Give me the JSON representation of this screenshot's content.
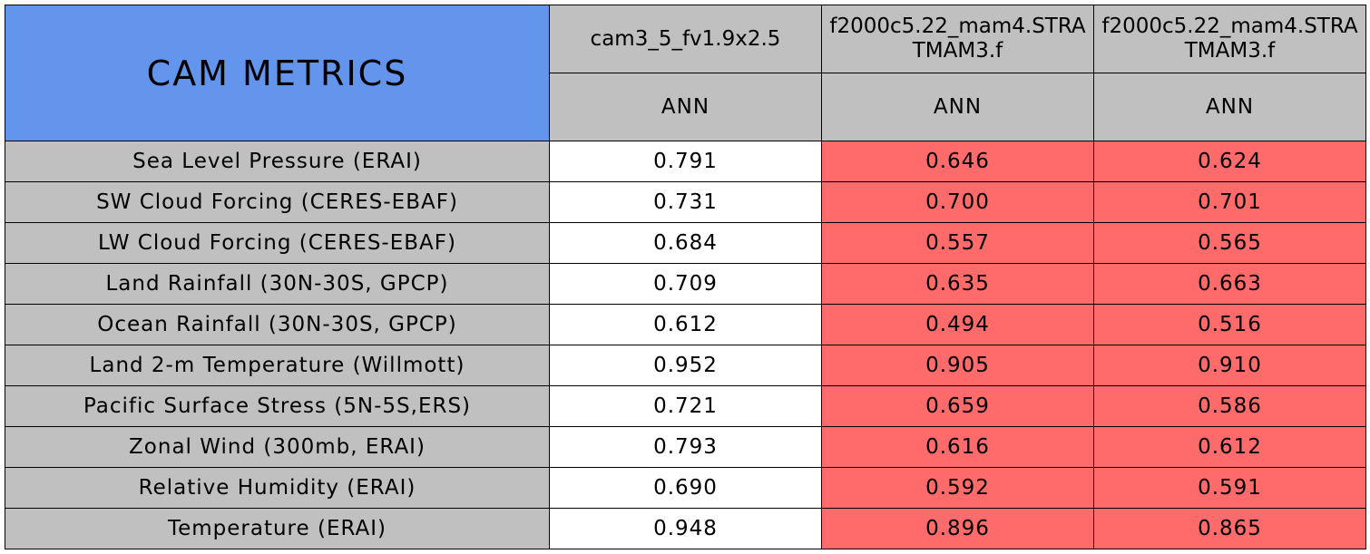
{
  "chart_data": {
    "type": "table",
    "title": "CAM METRICS",
    "columns": [
      "cam3_5_fv1.9x2.5",
      "f2000c5.22_mam4.STRATMAM3.f",
      "f2000c5.22_mam4.STRATMAM3.f"
    ],
    "season": "ANN",
    "rows": [
      {
        "label": "Sea Level Pressure (ERAI)",
        "values": [
          "0.791",
          "0.646",
          "0.624"
        ]
      },
      {
        "label": "SW Cloud Forcing (CERES-EBAF)",
        "values": [
          "0.731",
          "0.700",
          "0.701"
        ]
      },
      {
        "label": "LW Cloud Forcing (CERES-EBAF)",
        "values": [
          "0.684",
          "0.557",
          "0.565"
        ]
      },
      {
        "label": "Land Rainfall (30N-30S, GPCP)",
        "values": [
          "0.709",
          "0.635",
          "0.663"
        ]
      },
      {
        "label": "Ocean Rainfall (30N-30S, GPCP)",
        "values": [
          "0.612",
          "0.494",
          "0.516"
        ]
      },
      {
        "label": "Land 2-m Temperature (Willmott)",
        "values": [
          "0.952",
          "0.905",
          "0.910"
        ]
      },
      {
        "label": "Pacific Surface Stress (5N-5S,ERS)",
        "values": [
          "0.721",
          "0.659",
          "0.586"
        ]
      },
      {
        "label": "Zonal Wind (300mb, ERAI)",
        "values": [
          "0.793",
          "0.616",
          "0.612"
        ]
      },
      {
        "label": "Relative Humidity (ERAI)",
        "values": [
          "0.690",
          "0.592",
          "0.591"
        ]
      },
      {
        "label": "Temperature (ERAI)",
        "values": [
          "0.948",
          "0.896",
          "0.865"
        ]
      }
    ],
    "colors": {
      "title_bg": "#6495ED",
      "header_bg": "#C0C0C0",
      "worse": "#FF6A6A",
      "baseline": "#FFFFFF"
    }
  }
}
